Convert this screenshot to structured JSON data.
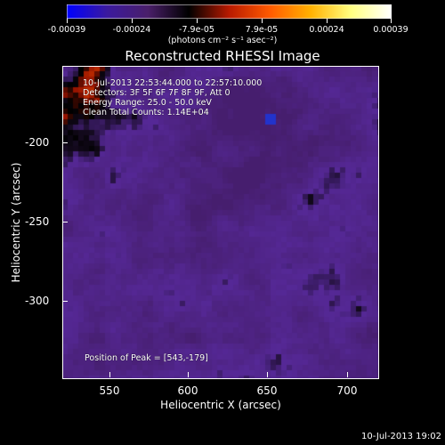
{
  "colorbar": {
    "colors": [
      "#0000ff",
      "#3b1a9e",
      "#4a1f6a",
      "#000000",
      "#b81a00",
      "#ff5a00",
      "#ffb000",
      "#ffff80",
      "#ffffff"
    ],
    "ticks": [
      "-0.00039",
      "-0.00024",
      "-7.9e-05",
      "7.9e-05",
      "0.00024",
      "0.00039"
    ],
    "units": "(photons cm⁻² s⁻¹ asec⁻²)"
  },
  "chart_data": {
    "type": "heatmap",
    "title": "Reconstructed RHESSI Image",
    "xlabel": "Heliocentric X (arcsec)",
    "ylabel": "Heliocentric Y (arcsec)",
    "xlim": [
      525,
      715
    ],
    "ylim": [
      -345,
      -170
    ],
    "xticks": [
      "550",
      "600",
      "650",
      "700"
    ],
    "yticks": [
      "-200",
      "-250",
      "-300"
    ],
    "annotations": {
      "time_range": "10-Jul-2013 22:53:44.000 to 22:57:10.000",
      "detectors": "Detectors: 3F 5F 6F 7F 8F 9F, Att 0",
      "energy": "Energy Range: 25.0 - 50.0 keV",
      "method": "Clean     Total Counts: 1.14E+04",
      "peak": "Position of Peak = [543,-179]"
    }
  },
  "timestamp": "10-Jul-2013 19:02"
}
